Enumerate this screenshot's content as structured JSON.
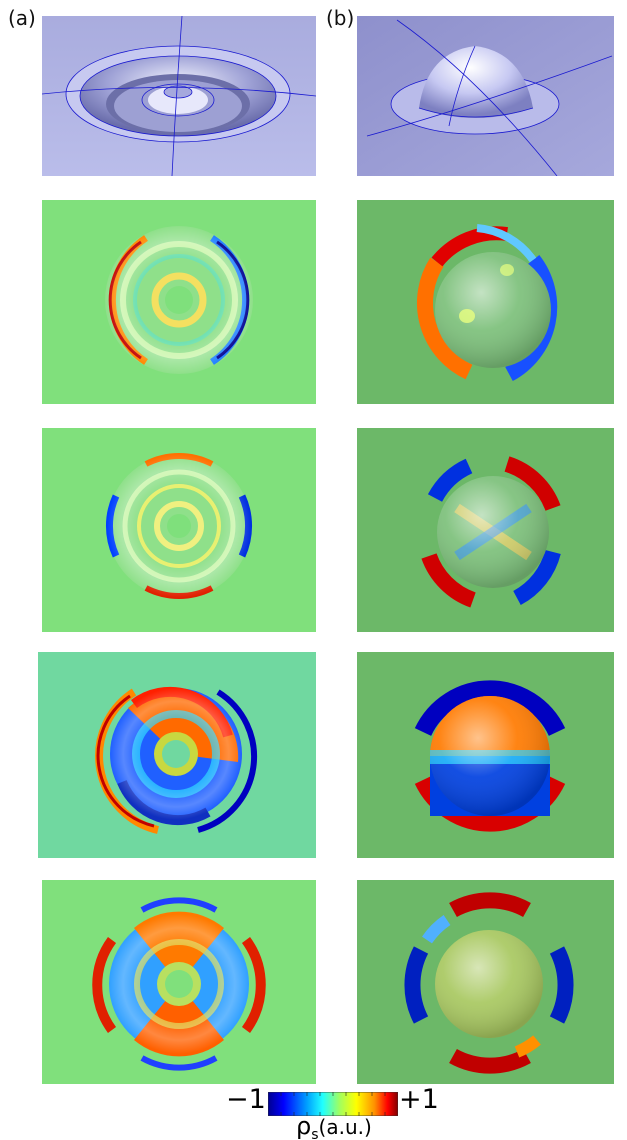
{
  "figure": {
    "panel_a_label": "(a)",
    "panel_b_label": "(b)",
    "colorbar": {
      "min_label": "−1",
      "max_label": "+1",
      "quantity_label": "ρ",
      "quantity_subscript": "s",
      "unit_label": "(a.u.)",
      "colormap": [
        "#00008f",
        "#0000ff",
        "#00a0ff",
        "#20ffff",
        "#a0ff60",
        "#ffff00",
        "#ff9000",
        "#ff0000",
        "#800000"
      ]
    },
    "colors": {
      "model_background_a": "#b2b4e6",
      "model_background_b": "#9a9bd2",
      "map_background_a": "#80e07c",
      "map_background_b": "#6cb868",
      "mesh_line": "#1a1ad0"
    }
  }
}
